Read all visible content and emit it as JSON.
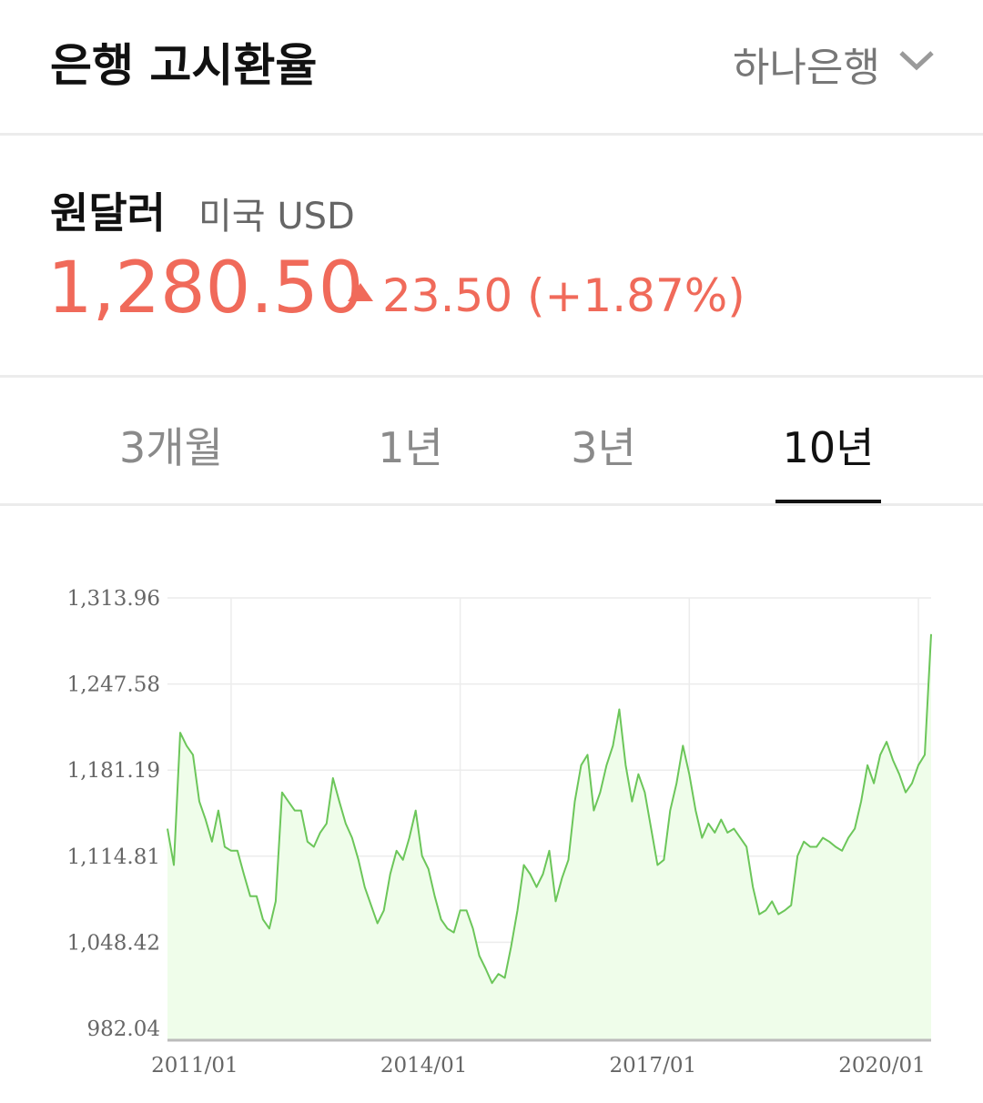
{
  "header": {
    "title": "은행 고시환율",
    "bank": "하나은행"
  },
  "quote": {
    "name": "원달러",
    "sub": "미국 USD",
    "price": "1,280.50",
    "change": "23.50 (+1.87%)"
  },
  "tabs": {
    "items": [
      "3개월",
      "1년",
      "3년",
      "10년"
    ],
    "selected": 3
  },
  "chart_data": {
    "type": "line",
    "color": "#6cc65a",
    "fill": "#effdea",
    "grid": true,
    "x": [
      "2010/03",
      "2010/04",
      "2010/05",
      "2010/06",
      "2010/07",
      "2010/08",
      "2010/09",
      "2010/10",
      "2010/11",
      "2010/12",
      "2011/01",
      "2011/02",
      "2011/03",
      "2011/04",
      "2011/05",
      "2011/06",
      "2011/07",
      "2011/08",
      "2011/09",
      "2011/10",
      "2011/11",
      "2011/12",
      "2012/01",
      "2012/02",
      "2012/03",
      "2012/04",
      "2012/05",
      "2012/06",
      "2012/07",
      "2012/08",
      "2012/09",
      "2012/10",
      "2012/11",
      "2012/12",
      "2013/01",
      "2013/02",
      "2013/03",
      "2013/04",
      "2013/05",
      "2013/06",
      "2013/07",
      "2013/08",
      "2013/09",
      "2013/10",
      "2013/11",
      "2013/12",
      "2014/01",
      "2014/02",
      "2014/03",
      "2014/04",
      "2014/05",
      "2014/06",
      "2014/07",
      "2014/08",
      "2014/09",
      "2014/10",
      "2014/11",
      "2014/12",
      "2015/01",
      "2015/02",
      "2015/03",
      "2015/04",
      "2015/05",
      "2015/06",
      "2015/07",
      "2015/08",
      "2015/09",
      "2015/10",
      "2015/11",
      "2015/12",
      "2016/01",
      "2016/02",
      "2016/03",
      "2016/04",
      "2016/05",
      "2016/06",
      "2016/07",
      "2016/08",
      "2016/09",
      "2016/10",
      "2016/11",
      "2016/12",
      "2017/01",
      "2017/02",
      "2017/03",
      "2017/04",
      "2017/05",
      "2017/06",
      "2017/07",
      "2017/08",
      "2017/09",
      "2017/10",
      "2017/11",
      "2017/12",
      "2018/01",
      "2018/02",
      "2018/03",
      "2018/04",
      "2018/05",
      "2018/06",
      "2018/07",
      "2018/08",
      "2018/09",
      "2018/10",
      "2018/11",
      "2018/12",
      "2019/01",
      "2019/02",
      "2019/03",
      "2019/04",
      "2019/05",
      "2019/06",
      "2019/07",
      "2019/08",
      "2019/09",
      "2019/10",
      "2019/11",
      "2019/12",
      "2020/01",
      "2020/02",
      "2020/03"
    ],
    "values": [
      1136,
      1108,
      1210,
      1200,
      1193,
      1157,
      1143,
      1126,
      1150,
      1122,
      1119,
      1119,
      1101,
      1084,
      1084,
      1066,
      1059,
      1080,
      1164,
      1157,
      1150,
      1150,
      1126,
      1122,
      1133,
      1140,
      1175,
      1157,
      1140,
      1129,
      1112,
      1091,
      1077,
      1063,
      1073,
      1101,
      1119,
      1112,
      1129,
      1150,
      1115,
      1105,
      1084,
      1066,
      1059,
      1056,
      1073,
      1073,
      1059,
      1038,
      1028,
      1017,
      1024,
      1021,
      1045,
      1073,
      1108,
      1101,
      1091,
      1101,
      1119,
      1080,
      1098,
      1112,
      1157,
      1185,
      1193,
      1150,
      1164,
      1185,
      1200,
      1228,
      1185,
      1157,
      1178,
      1164,
      1136,
      1108,
      1112,
      1150,
      1171,
      1200,
      1178,
      1150,
      1129,
      1140,
      1133,
      1143,
      1133,
      1136,
      1129,
      1122,
      1091,
      1070,
      1073,
      1080,
      1070,
      1073,
      1077,
      1115,
      1126,
      1122,
      1122,
      1129,
      1126,
      1122,
      1119,
      1129,
      1136,
      1157,
      1185,
      1171,
      1193,
      1203,
      1189,
      1178,
      1164,
      1171,
      1185,
      1193,
      1286
    ],
    "xlim": [
      "2010/03",
      "2020/03"
    ],
    "xticks": [
      "2011/01",
      "2014/01",
      "2017/01",
      "2020/01"
    ],
    "ylim": [
      972.9,
      1313.96
    ],
    "yticks": [
      982.04,
      {
        "value": 1048.42,
        "label": "1,048.42"
      },
      {
        "value": 1114.81,
        "label": "1,114.81"
      },
      {
        "value": 1181.19,
        "label": "1,181.19"
      },
      {
        "value": 1247.58,
        "label": "1,247.58"
      },
      {
        "value": 1313.96,
        "label": "1,313.96"
      }
    ]
  }
}
